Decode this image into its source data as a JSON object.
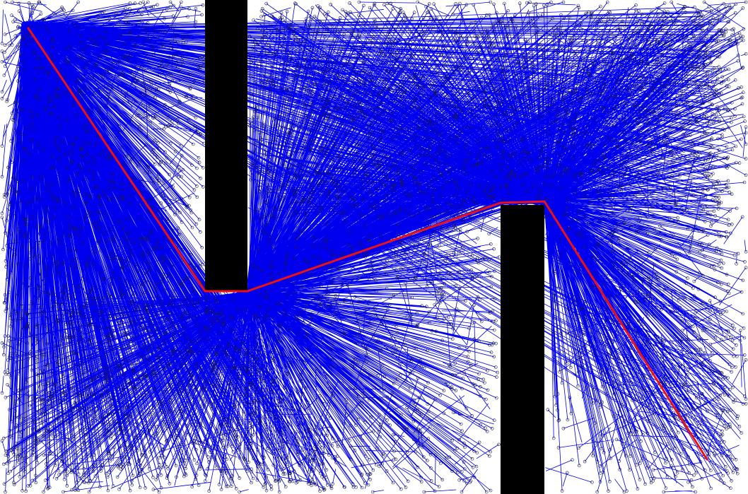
{
  "figure": {
    "kind": "rrt-path-planning-visualization",
    "background_color": "#ffffff",
    "tree_edge_color": "#0000ee",
    "tree_node_color": "#1a1a40",
    "obstacle_color": "#000000",
    "path_color": "#ee1111",
    "start": "top-left",
    "goal": "bottom-right",
    "obstacles": [
      {
        "name": "upper-wall",
        "attached_to": "top-edge"
      },
      {
        "name": "lower-wall",
        "attached_to": "bottom-edge"
      }
    ]
  }
}
